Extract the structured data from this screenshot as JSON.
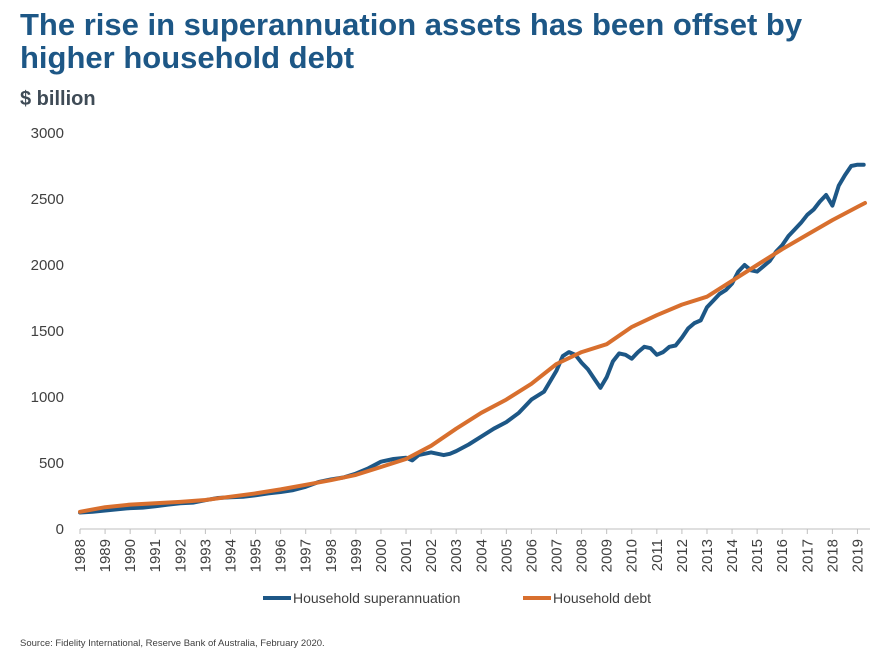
{
  "header": {
    "title": "The rise in superannuation assets has been offset by higher household debt",
    "unit": "$ billion"
  },
  "source": "Source: Fidelity International, Reserve Bank of Australia, February 2020.",
  "colors": {
    "super": "#1d5786",
    "debt": "#d86f2e",
    "axis": "#bfbfbf",
    "text": "#404040"
  },
  "chart_data": {
    "type": "line",
    "title": "The rise in superannuation assets has been offset by higher household debt",
    "ylabel": "$ billion",
    "xlabel": "",
    "ylim": [
      0,
      3000
    ],
    "yticks": [
      0,
      500,
      1000,
      1500,
      2000,
      2500,
      3000
    ],
    "categories": [
      "1988",
      "1989",
      "1990",
      "1991",
      "1992",
      "1993",
      "1994",
      "1995",
      "1996",
      "1997",
      "1998",
      "1999",
      "2000",
      "2001",
      "2002",
      "2003",
      "2004",
      "2005",
      "2006",
      "2007",
      "2008",
      "2009",
      "2010",
      "2011",
      "2012",
      "2013",
      "2014",
      "2015",
      "2016",
      "2017",
      "2018",
      "2019"
    ],
    "legend": "bottom",
    "series": [
      {
        "name": "Household superannuation",
        "color": "#1d5786",
        "x": [
          1988,
          1988.5,
          1989,
          1989.5,
          1990,
          1990.5,
          1991,
          1991.5,
          1992,
          1992.5,
          1993,
          1993.5,
          1994,
          1994.5,
          1995,
          1995.5,
          1996,
          1996.5,
          1997,
          1997.5,
          1998,
          1998.5,
          1999,
          1999.5,
          2000,
          2000.5,
          2001,
          2001.25,
          2001.5,
          2002,
          2002.5,
          2002.75,
          2003,
          2003.5,
          2004,
          2004.5,
          2005,
          2005.5,
          2006,
          2006.5,
          2007,
          2007.25,
          2007.5,
          2007.75,
          2008,
          2008.25,
          2008.5,
          2008.75,
          2009,
          2009.25,
          2009.5,
          2009.75,
          2010,
          2010.25,
          2010.5,
          2010.75,
          2011,
          2011.25,
          2011.5,
          2011.75,
          2012,
          2012.25,
          2012.5,
          2012.75,
          2013,
          2013.25,
          2013.5,
          2013.75,
          2014,
          2014.25,
          2014.5,
          2014.75,
          2015,
          2015.25,
          2015.5,
          2015.75,
          2016,
          2016.25,
          2016.5,
          2016.75,
          2017,
          2017.25,
          2017.5,
          2017.75,
          2018,
          2018.25,
          2018.5,
          2018.75,
          2019,
          2019.25
        ],
        "y": [
          125,
          130,
          140,
          150,
          158,
          162,
          172,
          185,
          195,
          200,
          218,
          235,
          240,
          245,
          255,
          270,
          280,
          295,
          320,
          355,
          375,
          390,
          420,
          460,
          510,
          530,
          540,
          520,
          560,
          580,
          560,
          570,
          590,
          640,
          700,
          760,
          810,
          880,
          980,
          1040,
          1200,
          1310,
          1340,
          1320,
          1260,
          1210,
          1140,
          1070,
          1150,
          1270,
          1330,
          1320,
          1290,
          1340,
          1380,
          1370,
          1320,
          1340,
          1380,
          1390,
          1450,
          1520,
          1560,
          1580,
          1680,
          1730,
          1780,
          1810,
          1860,
          1950,
          2000,
          1960,
          1950,
          1990,
          2030,
          2100,
          2150,
          2220,
          2270,
          2320,
          2380,
          2420,
          2480,
          2530,
          2450,
          2600,
          2680,
          2750,
          2760,
          2760
        ],
        "values_note": "monthly series approximated from gridlines"
      },
      {
        "name": "Household debt",
        "color": "#d86f2e",
        "x": [
          1988,
          1989,
          1990,
          1991,
          1992,
          1993,
          1994,
          1995,
          1996,
          1997,
          1998,
          1999,
          2000,
          2001,
          2002,
          2003,
          2004,
          2005,
          2006,
          2007,
          2008,
          2009,
          2010,
          2011,
          2012,
          2013,
          2014,
          2015,
          2016,
          2017,
          2018,
          2019,
          2019.3
        ],
        "y": [
          130,
          165,
          185,
          195,
          205,
          220,
          245,
          270,
          300,
          335,
          370,
          410,
          470,
          530,
          630,
          760,
          880,
          980,
          1100,
          1250,
          1340,
          1400,
          1530,
          1620,
          1700,
          1760,
          1880,
          2000,
          2120,
          2230,
          2340,
          2440,
          2470
        ]
      }
    ]
  }
}
